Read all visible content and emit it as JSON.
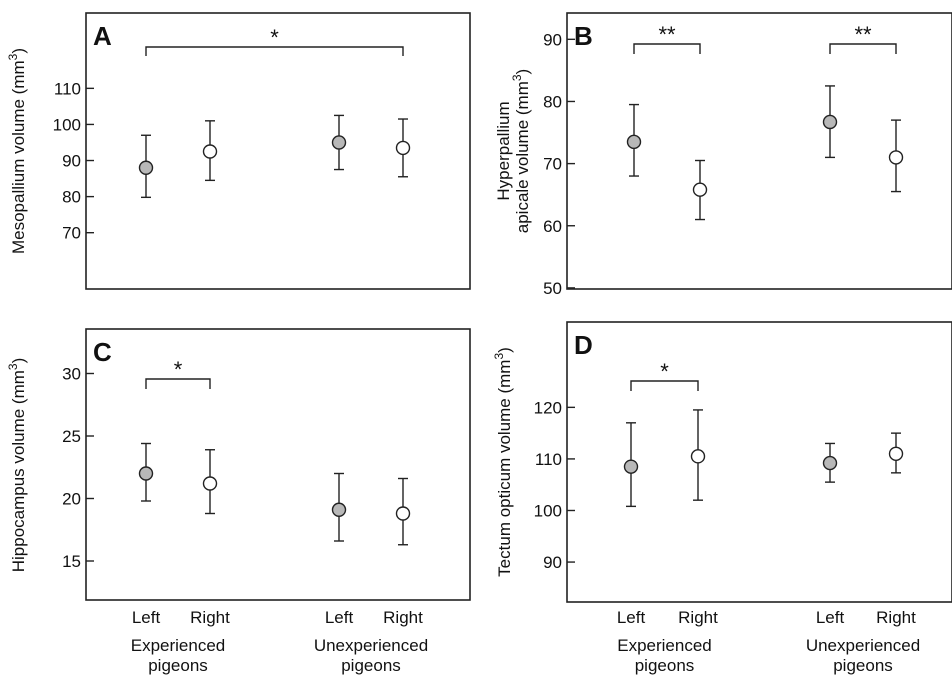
{
  "chart_data": [
    {
      "panel": "A",
      "type": "scatter",
      "ylabel": "Mesopallium volume (mm",
      "ylabel_sup": "3",
      "ylabel_close": ")",
      "ytick_labels": [
        "70",
        "80",
        "90",
        "100",
        "110"
      ],
      "ylim": [
        58,
        127
      ],
      "categories": [
        "Left",
        "Right",
        "Left",
        "Right"
      ],
      "groups": [
        "Experienced\npigeons",
        "Unexperienced\npigeons"
      ],
      "points": [
        {
          "category": "Left",
          "group": 0,
          "mean": 88.0,
          "low": 79.8,
          "high": 97.0,
          "fill": "#b8b8b8"
        },
        {
          "category": "Right",
          "group": 0,
          "mean": 92.5,
          "low": 84.5,
          "high": 101.0,
          "fill": "#ffffff"
        },
        {
          "category": "Left",
          "group": 1,
          "mean": 95.0,
          "low": 87.5,
          "high": 102.5,
          "fill": "#b8b8b8"
        },
        {
          "category": "Right",
          "group": 1,
          "mean": 93.5,
          "low": 85.5,
          "high": 101.5,
          "fill": "#ffffff"
        }
      ],
      "significance": [
        {
          "from": 0,
          "to": 3,
          "label": "*"
        }
      ]
    },
    {
      "panel": "B",
      "type": "scatter",
      "ylabel_line1": "Hyperpallium",
      "ylabel": "apicale volume (mm",
      "ylabel_sup": "3",
      "ylabel_close": ")",
      "ytick_labels": [
        "50",
        "60",
        "70",
        "80",
        "90"
      ],
      "ylim": [
        49.5,
        91.5
      ],
      "categories": [
        "Left",
        "Right",
        "Left",
        "Right"
      ],
      "groups": [
        "Experienced\npigeons",
        "Unexperienced\npigeons"
      ],
      "points": [
        {
          "category": "Left",
          "group": 0,
          "mean": 73.5,
          "low": 68.0,
          "high": 79.5,
          "fill": "#b8b8b8"
        },
        {
          "category": "Right",
          "group": 0,
          "mean": 65.8,
          "low": 61.0,
          "high": 70.5,
          "fill": "#ffffff"
        },
        {
          "category": "Left",
          "group": 1,
          "mean": 76.7,
          "low": 71.0,
          "high": 82.5,
          "fill": "#b8b8b8"
        },
        {
          "category": "Right",
          "group": 1,
          "mean": 71.0,
          "low": 65.5,
          "high": 77.0,
          "fill": "#ffffff"
        }
      ],
      "significance": [
        {
          "from": 0,
          "to": 1,
          "label": "**"
        },
        {
          "from": 2,
          "to": 3,
          "label": "**"
        }
      ]
    },
    {
      "panel": "C",
      "type": "scatter",
      "ylabel": "Hippocampus volume (mm",
      "ylabel_sup": "3",
      "ylabel_close": ")",
      "ytick_labels": [
        "15",
        "20",
        "25",
        "30"
      ],
      "ylim": [
        12.6,
        33.0
      ],
      "categories": [
        "Left",
        "Right",
        "Left",
        "Right"
      ],
      "groups": [
        "Experienced\npigeons",
        "Unexperienced\npigeons"
      ],
      "points": [
        {
          "category": "Left",
          "group": 0,
          "mean": 22.0,
          "low": 19.8,
          "high": 24.4,
          "fill": "#b8b8b8"
        },
        {
          "category": "Right",
          "group": 0,
          "mean": 21.2,
          "low": 18.8,
          "high": 23.9,
          "fill": "#ffffff"
        },
        {
          "category": "Left",
          "group": 1,
          "mean": 19.1,
          "low": 16.6,
          "high": 22.0,
          "fill": "#b8b8b8"
        },
        {
          "category": "Right",
          "group": 1,
          "mean": 18.8,
          "low": 16.3,
          "high": 21.6,
          "fill": "#ffffff"
        }
      ],
      "significance": [
        {
          "from": 0,
          "to": 1,
          "label": "*"
        }
      ]
    },
    {
      "panel": "D",
      "type": "scatter",
      "ylabel": "Tectum opticum volume (mm",
      "ylabel_sup": "3",
      "ylabel_close": ")",
      "ytick_labels": [
        "90",
        "100",
        "110",
        "120"
      ],
      "ylim": [
        84,
        135
      ],
      "categories": [
        "Left",
        "Right",
        "Left",
        "Right"
      ],
      "groups": [
        "Experienced\npigeons",
        "Unexperienced\npigeons"
      ],
      "points": [
        {
          "category": "Left",
          "group": 0,
          "mean": 108.5,
          "low": 100.8,
          "high": 117.0,
          "fill": "#b8b8b8"
        },
        {
          "category": "Right",
          "group": 0,
          "mean": 110.5,
          "low": 102.0,
          "high": 119.5,
          "fill": "#ffffff"
        },
        {
          "category": "Left",
          "group": 1,
          "mean": 109.2,
          "low": 105.5,
          "high": 113.0,
          "fill": "#b8b8b8"
        },
        {
          "category": "Right",
          "group": 1,
          "mean": 111.0,
          "low": 107.3,
          "high": 115.0,
          "fill": "#ffffff"
        }
      ],
      "significance": [
        {
          "from": 0,
          "to": 1,
          "label": "*"
        }
      ]
    }
  ]
}
